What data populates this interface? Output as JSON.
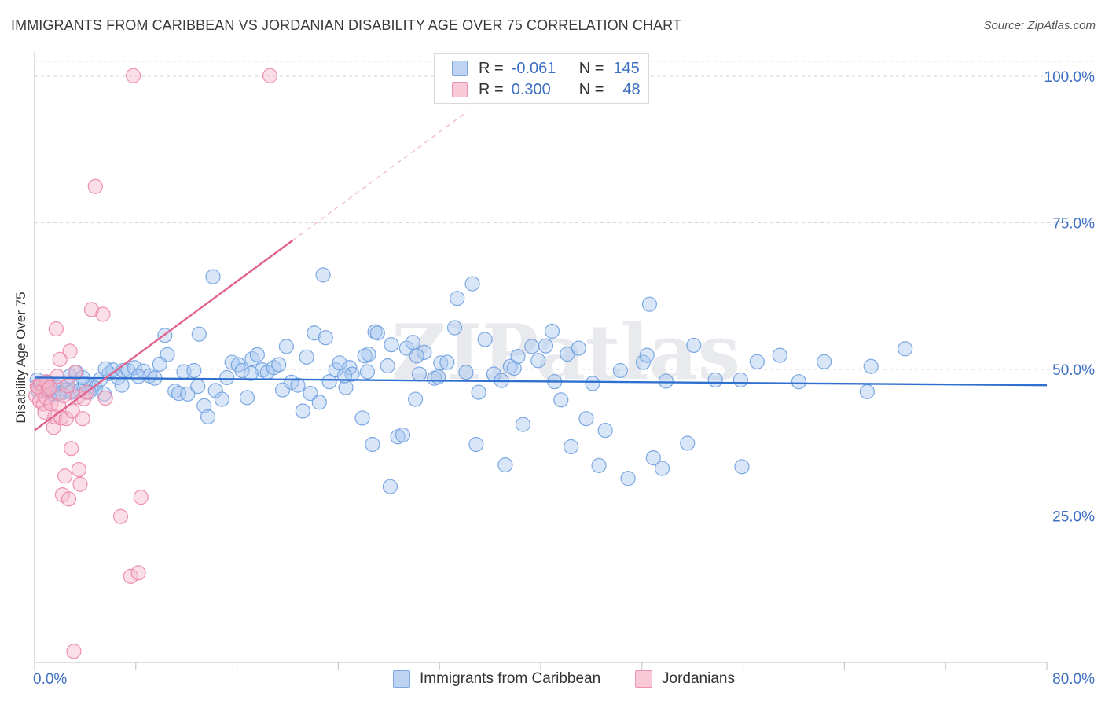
{
  "title": "IMMIGRANTS FROM CARIBBEAN VS JORDANIAN DISABILITY AGE OVER 75 CORRELATION CHART",
  "source": "Source: ZipAtlas.com",
  "watermark": "ZIPatlas",
  "legend": {
    "rows": [
      {
        "r_label": "R =",
        "r_value": "-0.061",
        "n_label": "N =",
        "n_value": "145",
        "color": "#a9c8ef"
      },
      {
        "r_label": "R =",
        "r_value": "0.300",
        "n_label": "N =",
        "n_value": "48",
        "color": "#f5b8cc"
      }
    ]
  },
  "bottom_legend": [
    {
      "label": "Immigrants from Caribbean",
      "color": "#a9c8ef"
    },
    {
      "label": "Jordanians",
      "color": "#f5b8cc"
    }
  ],
  "chart_data": {
    "type": "scatter",
    "title": "IMMIGRANTS FROM CARIBBEAN VS JORDANIAN DISABILITY AGE OVER 75 CORRELATION CHART",
    "xlabel": "",
    "ylabel": "Disability Age Over 75",
    "xlim": [
      0,
      80
    ],
    "ylim": [
      0,
      102
    ],
    "x_tick_labels": [
      "0.0%",
      "80.0%"
    ],
    "y_tick_values": [
      25,
      50,
      75,
      100
    ],
    "y_tick_labels": [
      "25.0%",
      "50.0%",
      "75.0%",
      "100.0%"
    ],
    "grid": true,
    "legend_position": "top-center",
    "series": [
      {
        "name": "Immigrants from Caribbean",
        "color": "#6fa0e0",
        "fill": "#a9c8ef",
        "trend": {
          "x": [
            0,
            80
          ],
          "y": [
            48.6,
            47.3
          ],
          "color": "#2f6fcf"
        },
        "points": [
          [
            0.2,
            48.2
          ],
          [
            0.4,
            47.5
          ],
          [
            0.6,
            47.0
          ],
          [
            0.8,
            46.6
          ],
          [
            1.0,
            47.8
          ],
          [
            1.2,
            46.2
          ],
          [
            1.4,
            45.8
          ],
          [
            1.6,
            47.2
          ],
          [
            1.8,
            46.9
          ],
          [
            2.0,
            47.4
          ],
          [
            2.2,
            46.0
          ],
          [
            2.5,
            46.5
          ],
          [
            2.8,
            48.9
          ],
          [
            3.0,
            46.4
          ],
          [
            3.3,
            49.5
          ],
          [
            3.6,
            46.5
          ],
          [
            4.0,
            47.6
          ],
          [
            4.5,
            47.2
          ],
          [
            4.8,
            46.8
          ],
          [
            5.2,
            48.3
          ],
          [
            5.5,
            45.8
          ],
          [
            5.9,
            49.3
          ],
          [
            6.2,
            49.9
          ],
          [
            6.6,
            48.6
          ],
          [
            7.0,
            49.8
          ],
          [
            7.4,
            49.8
          ],
          [
            7.9,
            50.3
          ],
          [
            8.6,
            49.7
          ],
          [
            9.1,
            48.9
          ],
          [
            9.5,
            48.5
          ],
          [
            10.3,
            55.8
          ],
          [
            10.5,
            52.5
          ],
          [
            11.1,
            46.3
          ],
          [
            11.4,
            45.9
          ],
          [
            11.8,
            49.6
          ],
          [
            12.1,
            45.8
          ],
          [
            12.6,
            49.8
          ],
          [
            13.0,
            56.0
          ],
          [
            13.4,
            43.8
          ],
          [
            13.7,
            41.9
          ],
          [
            14.1,
            65.8
          ],
          [
            14.3,
            46.4
          ],
          [
            14.8,
            44.9
          ],
          [
            15.2,
            48.6
          ],
          [
            15.6,
            51.2
          ],
          [
            16.1,
            50.8
          ],
          [
            16.4,
            49.8
          ],
          [
            16.8,
            45.2
          ],
          [
            17.2,
            51.8
          ],
          [
            17.6,
            52.5
          ],
          [
            18.0,
            49.9
          ],
          [
            18.4,
            49.5
          ],
          [
            18.9,
            50.3
          ],
          [
            19.3,
            50.8
          ],
          [
            19.6,
            46.5
          ],
          [
            19.9,
            53.9
          ],
          [
            20.3,
            47.8
          ],
          [
            20.8,
            47.3
          ],
          [
            21.2,
            42.9
          ],
          [
            21.5,
            52.1
          ],
          [
            21.8,
            45.9
          ],
          [
            22.1,
            56.2
          ],
          [
            22.5,
            44.4
          ],
          [
            22.8,
            66.1
          ],
          [
            23.0,
            55.4
          ],
          [
            23.3,
            47.9
          ],
          [
            23.8,
            49.9
          ],
          [
            24.1,
            51.1
          ],
          [
            24.6,
            46.9
          ],
          [
            24.9,
            50.3
          ],
          [
            25.1,
            49.2
          ],
          [
            25.9,
            41.7
          ],
          [
            26.1,
            52.3
          ],
          [
            26.3,
            49.6
          ],
          [
            26.7,
            37.2
          ],
          [
            26.9,
            56.4
          ],
          [
            27.1,
            56.2
          ],
          [
            27.9,
            50.6
          ],
          [
            28.1,
            30.0
          ],
          [
            28.2,
            54.2
          ],
          [
            28.7,
            38.5
          ],
          [
            29.1,
            38.8
          ],
          [
            29.4,
            53.6
          ],
          [
            29.9,
            54.6
          ],
          [
            30.1,
            44.9
          ],
          [
            30.4,
            49.2
          ],
          [
            30.8,
            52.9
          ],
          [
            31.6,
            48.5
          ],
          [
            31.9,
            48.7
          ],
          [
            32.1,
            51.1
          ],
          [
            32.6,
            51.2
          ],
          [
            33.2,
            57.1
          ],
          [
            33.4,
            62.1
          ],
          [
            34.1,
            49.5
          ],
          [
            34.6,
            64.6
          ],
          [
            34.9,
            37.2
          ],
          [
            35.6,
            55.1
          ],
          [
            36.3,
            49.2
          ],
          [
            36.9,
            48.1
          ],
          [
            37.2,
            33.7
          ],
          [
            37.6,
            50.5
          ],
          [
            37.9,
            50.2
          ],
          [
            38.6,
            40.6
          ],
          [
            39.3,
            53.9
          ],
          [
            39.8,
            51.5
          ],
          [
            40.4,
            54.0
          ],
          [
            40.9,
            56.5
          ],
          [
            41.1,
            47.9
          ],
          [
            41.6,
            44.8
          ],
          [
            42.1,
            52.6
          ],
          [
            42.4,
            36.8
          ],
          [
            43.0,
            53.6
          ],
          [
            43.6,
            41.6
          ],
          [
            44.6,
            33.6
          ],
          [
            45.1,
            39.6
          ],
          [
            46.9,
            31.4
          ],
          [
            48.1,
            51.2
          ],
          [
            48.4,
            52.4
          ],
          [
            48.6,
            61.1
          ],
          [
            48.9,
            34.9
          ],
          [
            49.6,
            33.1
          ],
          [
            49.9,
            48.0
          ],
          [
            51.6,
            37.4
          ],
          [
            52.1,
            54.1
          ],
          [
            53.8,
            48.2
          ],
          [
            55.8,
            48.2
          ],
          [
            55.9,
            33.4
          ],
          [
            57.1,
            51.3
          ],
          [
            58.9,
            52.4
          ],
          [
            62.4,
            51.3
          ],
          [
            65.8,
            46.2
          ],
          [
            66.1,
            50.5
          ],
          [
            68.8,
            53.5
          ],
          [
            0.3,
            46.3
          ],
          [
            1.1,
            46.6
          ],
          [
            0.7,
            47.4
          ],
          [
            1.5,
            45.8
          ],
          [
            2.9,
            46.1
          ],
          [
            5.6,
            50.1
          ],
          [
            3.8,
            48.6
          ],
          [
            6.9,
            47.3
          ],
          [
            8.2,
            48.8
          ],
          [
            9.9,
            50.9
          ],
          [
            17.1,
            49.3
          ],
          [
            24.5,
            48.9
          ],
          [
            26.4,
            52.6
          ],
          [
            30.2,
            52.3
          ],
          [
            35.1,
            46.1
          ],
          [
            38.2,
            52.2
          ],
          [
            44.1,
            47.6
          ],
          [
            46.3,
            49.8
          ],
          [
            60.4,
            47.9
          ],
          [
            1.9,
            45.9
          ],
          [
            4.3,
            46.1
          ],
          [
            12.9,
            47.1
          ]
        ]
      },
      {
        "name": "Jordanians",
        "color": "#ec86a7",
        "fill": "#f5b8cc",
        "trend": {
          "x": [
            0,
            20.4
          ],
          "y": [
            39.6,
            72.0
          ],
          "color": "#e2628e",
          "dash_to": {
            "x": 34.2,
            "y": 94.0
          }
        },
        "points": [
          [
            0.1,
            45.5
          ],
          [
            0.2,
            47.1
          ],
          [
            0.3,
            46.9
          ],
          [
            0.4,
            44.6
          ],
          [
            0.5,
            47.6
          ],
          [
            0.6,
            46.3
          ],
          [
            0.7,
            44.1
          ],
          [
            0.8,
            42.7
          ],
          [
            0.9,
            45.2
          ],
          [
            1.0,
            47.5
          ],
          [
            1.1,
            46.6
          ],
          [
            1.3,
            44.1
          ],
          [
            1.5,
            40.1
          ],
          [
            1.6,
            41.9
          ],
          [
            1.7,
            56.9
          ],
          [
            1.8,
            48.8
          ],
          [
            1.9,
            43.9
          ],
          [
            2.0,
            51.7
          ],
          [
            2.1,
            41.7
          ],
          [
            2.2,
            28.6
          ],
          [
            2.3,
            45.5
          ],
          [
            2.4,
            31.8
          ],
          [
            2.5,
            41.6
          ],
          [
            2.7,
            27.9
          ],
          [
            2.8,
            53.1
          ],
          [
            2.9,
            36.5
          ],
          [
            3.0,
            42.9
          ],
          [
            3.2,
            49.5
          ],
          [
            3.4,
            45.3
          ],
          [
            3.5,
            32.9
          ],
          [
            3.6,
            30.4
          ],
          [
            3.8,
            41.6
          ],
          [
            3.9,
            45.0
          ],
          [
            4.1,
            46.1
          ],
          [
            4.5,
            60.2
          ],
          [
            4.8,
            81.2
          ],
          [
            5.4,
            59.4
          ],
          [
            5.6,
            45.1
          ],
          [
            6.8,
            24.9
          ],
          [
            7.6,
            14.7
          ],
          [
            7.8,
            100.1
          ],
          [
            8.2,
            15.3
          ],
          [
            8.4,
            28.2
          ],
          [
            18.6,
            100.1
          ],
          [
            3.1,
            1.9
          ],
          [
            0.9,
            47.9
          ],
          [
            1.2,
            46.9
          ],
          [
            2.6,
            47.2
          ]
        ]
      }
    ]
  }
}
